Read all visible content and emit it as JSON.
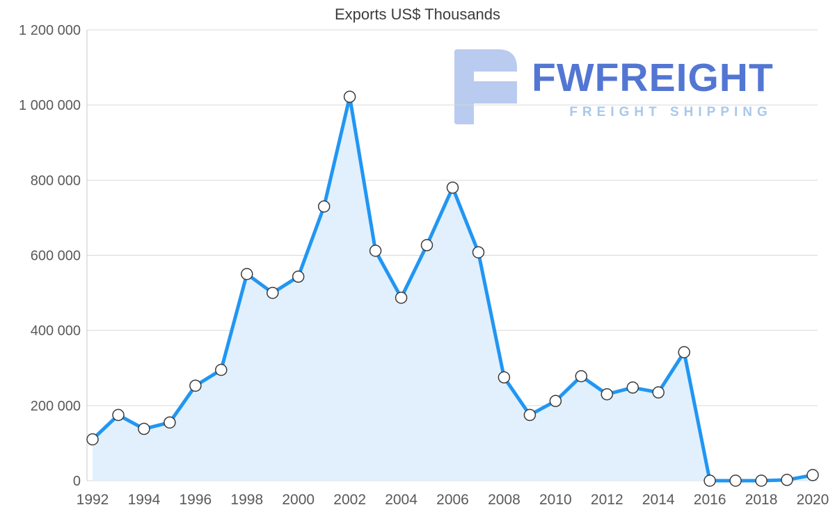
{
  "title": "Exports US$ Thousands",
  "watermark": {
    "brand": "FWFREIGHT",
    "tagline": "FREIGHT SHIPPING",
    "brand_color": "#4a6fd1",
    "tagline_color": "#a4c6e9",
    "icon_color": "#b6c9ee"
  },
  "chart_data": {
    "type": "area",
    "title": "Exports US$ Thousands",
    "xlabel": "",
    "ylabel": "",
    "x": [
      1992,
      1993,
      1994,
      1995,
      1996,
      1997,
      1998,
      1999,
      2000,
      2001,
      2002,
      2003,
      2004,
      2005,
      2006,
      2007,
      2008,
      2009,
      2010,
      2011,
      2012,
      2013,
      2014,
      2015,
      2016,
      2017,
      2018,
      2019,
      2020
    ],
    "values": [
      110000,
      175000,
      138000,
      155000,
      253000,
      295000,
      550000,
      500000,
      543000,
      730000,
      1022000,
      612000,
      487000,
      627000,
      780000,
      608000,
      275000,
      175000,
      212000,
      278000,
      230000,
      248000,
      235000,
      342000,
      0,
      0,
      0,
      2000,
      15000
    ],
    "ylim": [
      0,
      1200000
    ],
    "y_ticks": [
      0,
      200000,
      400000,
      600000,
      800000,
      1000000,
      1200000
    ],
    "y_tick_labels": [
      "0",
      "200 000",
      "400 000",
      "600 000",
      "800 000",
      "1 000 000",
      "1 200 000"
    ],
    "x_ticks": [
      1992,
      1994,
      1996,
      1998,
      2000,
      2002,
      2004,
      2006,
      2008,
      2010,
      2012,
      2014,
      2016,
      2018,
      2020
    ],
    "x_tick_labels": [
      "1992",
      "1994",
      "1996",
      "1998",
      "2000",
      "2002",
      "2004",
      "2006",
      "2008",
      "2010",
      "2012",
      "2014",
      "2016",
      "2018",
      "2020"
    ],
    "grid": true,
    "legend": "none",
    "line_color": "#2196f3",
    "fill_color": "#e1f0fc",
    "marker_fill": "#ffffff",
    "marker_stroke": "#3a3a3a",
    "grid_color": "#d9d9d9",
    "axis_color": "#c9c9c9",
    "tick_label_color": "#595959"
  }
}
